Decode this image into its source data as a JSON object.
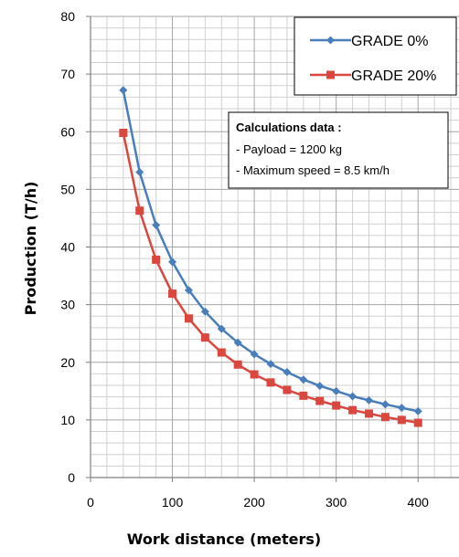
{
  "chart_data": {
    "type": "line",
    "xlabel": "Work distance (meters)",
    "ylabel": "Production (T/h)",
    "xlim": [
      0,
      450
    ],
    "ylim": [
      0,
      80
    ],
    "x_ticks": [
      0,
      100,
      200,
      300,
      400
    ],
    "y_ticks": [
      0,
      10,
      20,
      30,
      40,
      50,
      60,
      70,
      80
    ],
    "grid": true,
    "legend_position": "top-right",
    "x": [
      40,
      60,
      80,
      100,
      120,
      140,
      160,
      180,
      200,
      220,
      240,
      260,
      280,
      300,
      320,
      340,
      360,
      380,
      400
    ],
    "series": [
      {
        "name": "GRADE 0%",
        "color": "#4a7ebb",
        "marker": "diamond",
        "values": [
          67.2,
          53.0,
          43.8,
          37.4,
          32.5,
          28.8,
          25.8,
          23.4,
          21.4,
          19.7,
          18.3,
          17.0,
          15.9,
          15.0,
          14.1,
          13.4,
          12.7,
          12.1,
          11.5
        ]
      },
      {
        "name": "GRADE 20%",
        "color": "#d9473f",
        "marker": "square",
        "values": [
          59.8,
          46.3,
          37.8,
          31.9,
          27.6,
          24.3,
          21.7,
          19.6,
          17.9,
          16.5,
          15.2,
          14.2,
          13.3,
          12.5,
          11.7,
          11.1,
          10.5,
          10.0,
          9.5
        ]
      }
    ],
    "annotation": {
      "title": "Calculations data :",
      "lines": [
        "- Payload = 1200 kg",
        "- Maximum speed = 8.5 km/h"
      ]
    }
  }
}
